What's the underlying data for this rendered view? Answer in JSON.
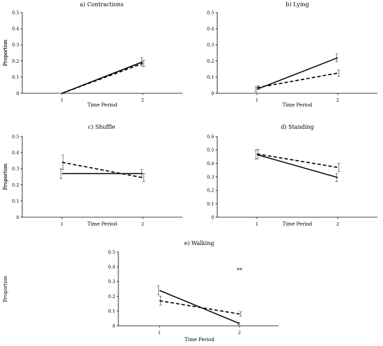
{
  "chart_data": [
    {
      "type": "line",
      "title": "a) Contractions",
      "xlabel": "Time Period",
      "ylabel": "Proportion",
      "x": [
        1,
        2
      ],
      "ylim": [
        0,
        0.5
      ],
      "yticks": [
        "0",
        "0.1",
        "0.2",
        "0.3",
        "0.4",
        "0.5"
      ],
      "xticks": [
        "1",
        "2"
      ],
      "grid": false,
      "series": [
        {
          "style": "solid",
          "values": [
            0.0,
            0.195
          ],
          "errors": [
            0,
            0.025
          ]
        },
        {
          "style": "dashed",
          "values": [
            0.0,
            0.185
          ],
          "errors": [
            0,
            0.02
          ]
        }
      ],
      "annotation": ""
    },
    {
      "type": "line",
      "title": "b) Lying",
      "xlabel": "Time Period",
      "ylabel": "Proportion",
      "x": [
        1,
        2
      ],
      "ylim": [
        0,
        0.5
      ],
      "yticks": [
        "0",
        "0.1",
        "0.2",
        "0.3",
        "0.4",
        "0.5"
      ],
      "xticks": [
        "1",
        "2"
      ],
      "grid": false,
      "series": [
        {
          "style": "solid",
          "values": [
            0.025,
            0.22
          ],
          "errors": [
            0.015,
            0.025
          ]
        },
        {
          "style": "dashed",
          "values": [
            0.035,
            0.125
          ],
          "errors": [
            0.012,
            0.02
          ]
        }
      ],
      "annotation": ""
    },
    {
      "type": "line",
      "title": "c) Shuffle",
      "xlabel": "Time Period",
      "ylabel": "Proportion",
      "x": [
        1,
        2
      ],
      "ylim": [
        0,
        0.5
      ],
      "yticks": [
        "0",
        "0.1",
        "0.2",
        "0.3",
        "0.4",
        "0.5"
      ],
      "xticks": [
        "1",
        "2"
      ],
      "grid": false,
      "series": [
        {
          "style": "solid",
          "values": [
            0.27,
            0.27
          ],
          "errors": [
            0.03,
            0.025
          ]
        },
        {
          "style": "dashed",
          "values": [
            0.34,
            0.245
          ],
          "errors": [
            0.045,
            0.025
          ]
        }
      ],
      "annotation": ""
    },
    {
      "type": "line",
      "title": "d) Standing",
      "xlabel": "Time Period",
      "ylabel": "Proportion",
      "x": [
        1,
        2
      ],
      "ylim": [
        0,
        0.6
      ],
      "yticks": [
        "0",
        "0.1",
        "0.2",
        "0.3",
        "0.4",
        "0.5",
        "0.6"
      ],
      "xticks": [
        "1",
        "2"
      ],
      "grid": false,
      "series": [
        {
          "style": "solid",
          "values": [
            0.465,
            0.295
          ],
          "errors": [
            0.035,
            0.03
          ]
        },
        {
          "style": "dashed",
          "values": [
            0.47,
            0.37
          ],
          "errors": [
            0.035,
            0.03
          ]
        }
      ],
      "annotation": ""
    },
    {
      "type": "line",
      "title": "e) Walking",
      "xlabel": "Time Period",
      "ylabel": "Proportion",
      "x": [
        1,
        2
      ],
      "ylim": [
        0,
        0.5
      ],
      "yticks": [
        "0",
        "0.1",
        "0.2",
        "0.3",
        "0.4",
        "0.5"
      ],
      "xticks": [
        "1",
        "2"
      ],
      "grid": false,
      "series": [
        {
          "style": "solid",
          "values": [
            0.24,
            0.015
          ],
          "errors": [
            0.03,
            0.008
          ]
        },
        {
          "style": "dashed",
          "values": [
            0.17,
            0.08
          ],
          "errors": [
            0.03,
            0.015
          ]
        }
      ],
      "annotation": "**"
    }
  ]
}
